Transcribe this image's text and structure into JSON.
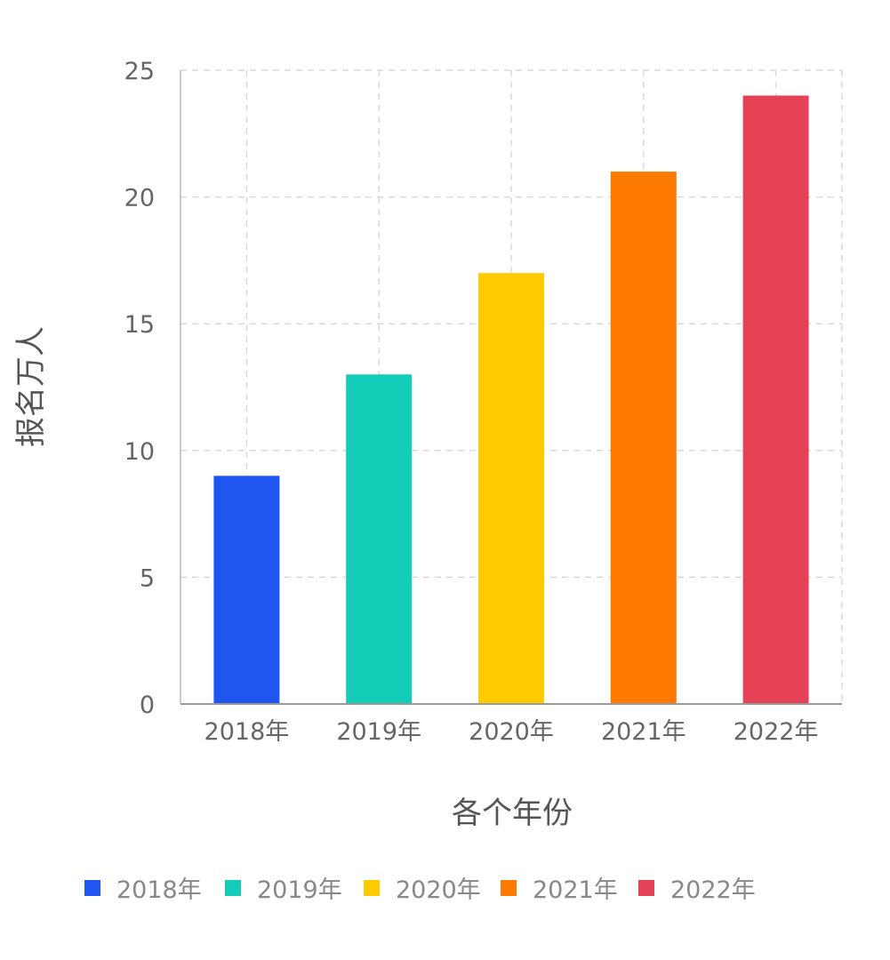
{
  "chart_data": {
    "type": "bar",
    "categories": [
      "2018年",
      "2019年",
      "2020年",
      "2021年",
      "2022年"
    ],
    "values": [
      9,
      13,
      17,
      21,
      24
    ],
    "colors": [
      "#2056F0",
      "#14CDB8",
      "#FFCB00",
      "#FF7A00",
      "#E64257"
    ],
    "xlabel": "各个年份",
    "ylabel": "报名万人",
    "ylim": [
      0,
      25
    ],
    "yticks": [
      0,
      5,
      10,
      15,
      20,
      25
    ],
    "grid": true,
    "legend": {
      "placement": "bottom",
      "entries": [
        "2018年",
        "2019年",
        "2020年",
        "2021年",
        "2022年"
      ]
    }
  }
}
